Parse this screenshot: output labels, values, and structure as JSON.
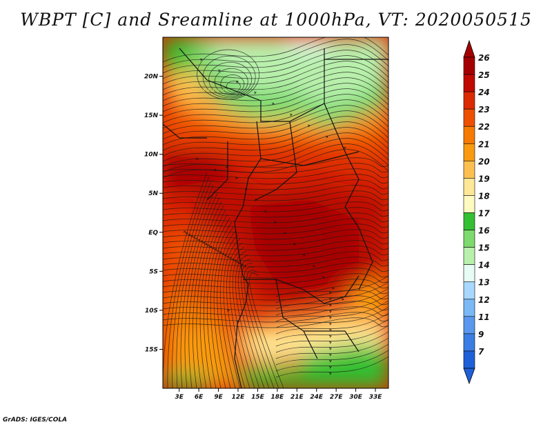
{
  "title": "WBPT [C] and Sreamline at 1000hPa, VT: 2020050515",
  "credit": "GrADS: IGES/COLA",
  "map": {
    "lat_labels": [
      {
        "label": "20N",
        "value": 20
      },
      {
        "label": "15N",
        "value": 15
      },
      {
        "label": "10N",
        "value": 10
      },
      {
        "label": "5N",
        "value": 5
      },
      {
        "label": "EQ",
        "value": 0
      },
      {
        "label": "5S",
        "value": -5
      },
      {
        "label": "10S",
        "value": -10
      },
      {
        "label": "15S",
        "value": -15
      }
    ],
    "lon_labels": [
      {
        "label": "3E",
        "value": 3
      },
      {
        "label": "6E",
        "value": 6
      },
      {
        "label": "9E",
        "value": 9
      },
      {
        "label": "12E",
        "value": 12
      },
      {
        "label": "15E",
        "value": 15
      },
      {
        "label": "18E",
        "value": 18
      },
      {
        "label": "21E",
        "value": 21
      },
      {
        "label": "24E",
        "value": 24
      },
      {
        "label": "27E",
        "value": 27
      },
      {
        "label": "30E",
        "value": 30
      },
      {
        "label": "33E",
        "value": 33
      }
    ],
    "lon_range": [
      0.5,
      35
    ],
    "lat_range": [
      -20,
      25
    ]
  },
  "colorbar": {
    "levels": [
      {
        "label": "26",
        "color": "#a50000"
      },
      {
        "label": "25",
        "color": "#c00a00"
      },
      {
        "label": "24",
        "color": "#dc2a00"
      },
      {
        "label": "23",
        "color": "#ee5000"
      },
      {
        "label": "22",
        "color": "#f67a00"
      },
      {
        "label": "21",
        "color": "#fa9a10"
      },
      {
        "label": "20",
        "color": "#fcc050"
      },
      {
        "label": "19",
        "color": "#fee898"
      },
      {
        "label": "18",
        "color": "#fffac0"
      },
      {
        "label": "17",
        "color": "#33c033"
      },
      {
        "label": "16",
        "color": "#7dda6e"
      },
      {
        "label": "15",
        "color": "#b8f0ac"
      },
      {
        "label": "14",
        "color": "#e6fcf4"
      },
      {
        "label": "13",
        "color": "#a8d8ff"
      },
      {
        "label": "12",
        "color": "#7ab8f6"
      },
      {
        "label": "11",
        "color": "#5a98ee"
      },
      {
        "label": "9",
        "color": "#3a7ee4"
      },
      {
        "label": "7",
        "color": "#1e60d8"
      }
    ],
    "top_cap_color": "#a50000",
    "bottom_cap_color": "#1e60d8"
  }
}
